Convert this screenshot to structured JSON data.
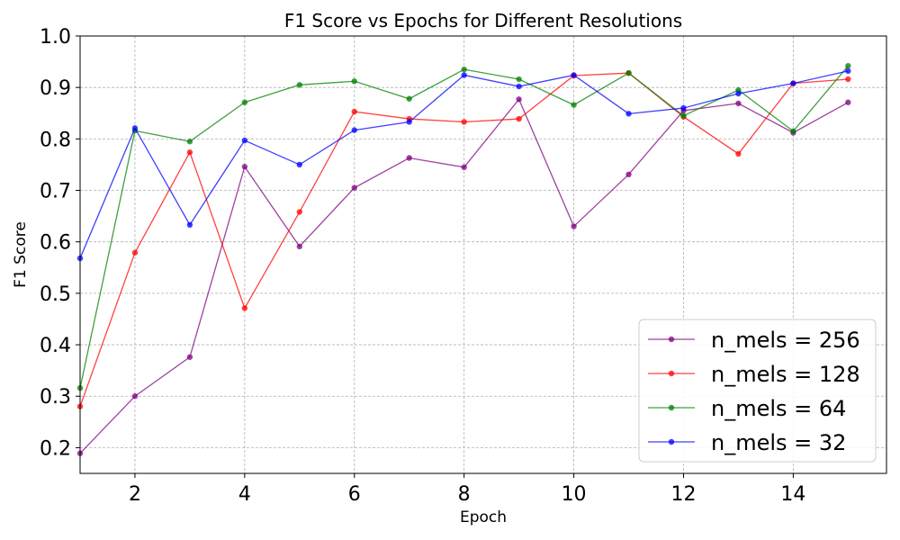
{
  "chart_data": {
    "type": "line",
    "title": "F1 Score vs Epochs for Different Resolutions",
    "xlabel": "Epoch",
    "ylabel": "F1 Score",
    "xlim": [
      1,
      15.7
    ],
    "ylim": [
      0.15,
      1.0
    ],
    "x_ticks": [
      2,
      4,
      6,
      8,
      10,
      12,
      14
    ],
    "y_ticks": [
      0.2,
      0.3,
      0.4,
      0.5,
      0.6,
      0.7,
      0.8,
      0.9,
      1.0
    ],
    "grid": true,
    "legend_position": "bottom-right",
    "x": [
      1,
      2,
      3,
      4,
      5,
      6,
      7,
      8,
      9,
      10,
      11,
      12,
      13,
      14,
      15
    ],
    "series": [
      {
        "name": "n_mels = 256",
        "color": "#800080",
        "values": [
          0.189,
          0.3,
          0.376,
          0.746,
          0.591,
          0.705,
          0.763,
          0.745,
          0.877,
          0.63,
          0.731,
          0.855,
          0.869,
          0.812,
          0.871
        ]
      },
      {
        "name": "n_mels = 128",
        "color": "#ff0000",
        "values": [
          0.28,
          0.579,
          0.774,
          0.471,
          0.658,
          0.853,
          0.839,
          0.833,
          0.839,
          0.923,
          0.928,
          0.843,
          0.771,
          0.908,
          0.916
        ]
      },
      {
        "name": "n_mels = 64",
        "color": "#008000",
        "values": [
          0.316,
          0.816,
          0.795,
          0.871,
          0.905,
          0.912,
          0.878,
          0.935,
          0.916,
          0.866,
          0.928,
          0.845,
          0.895,
          0.815,
          0.942
        ]
      },
      {
        "name": "n_mels = 32",
        "color": "#0000ff",
        "values": [
          0.568,
          0.821,
          0.633,
          0.797,
          0.75,
          0.817,
          0.833,
          0.924,
          0.902,
          0.924,
          0.849,
          0.86,
          0.888,
          0.908,
          0.932
        ]
      }
    ]
  }
}
